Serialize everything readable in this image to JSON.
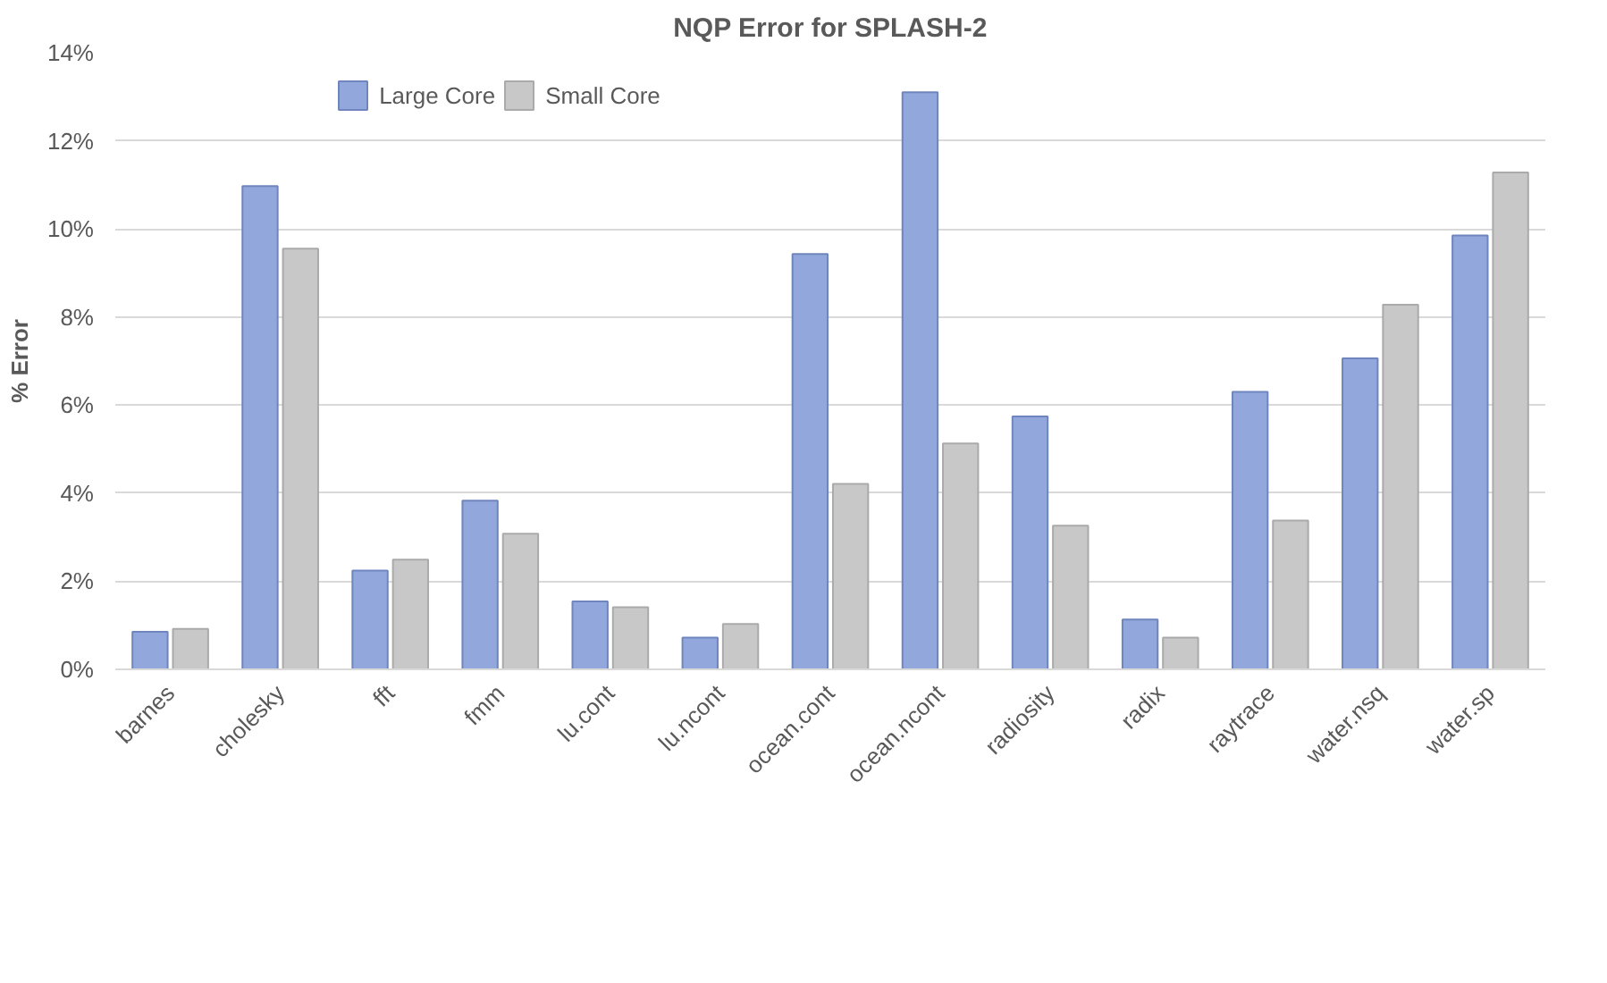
{
  "chart_data": {
    "type": "bar",
    "title": "NQP Error for SPLASH-2",
    "ylabel": "% Error",
    "categories": [
      "barnes",
      "cholesky",
      "fft",
      "fmm",
      "lu.cont",
      "lu.ncont",
      "ocean.cont",
      "ocean.ncont",
      "radiosity",
      "radix",
      "raytrace",
      "water.nsq",
      "water.sp"
    ],
    "series": [
      {
        "name": "Large Core",
        "color": "#92a8dc",
        "values": [
          0.85,
          10.97,
          2.24,
          3.83,
          1.54,
          0.72,
          9.43,
          13.1,
          5.74,
          1.13,
          6.3,
          7.06,
          9.85
        ]
      },
      {
        "name": "Small Core",
        "color": "#c8c8c8",
        "values": [
          0.92,
          9.55,
          2.49,
          3.08,
          1.41,
          1.03,
          4.21,
          5.13,
          3.26,
          0.72,
          3.38,
          8.28,
          11.28
        ]
      }
    ],
    "ylim": [
      0,
      14
    ],
    "yticks": [
      {
        "value": 0,
        "label": "0%"
      },
      {
        "value": 2,
        "label": "2%"
      },
      {
        "value": 4,
        "label": "4%"
      },
      {
        "value": 6,
        "label": "6%"
      },
      {
        "value": 8,
        "label": "8%"
      },
      {
        "value": 10,
        "label": "10%"
      },
      {
        "value": 12,
        "label": "12%"
      },
      {
        "value": 14,
        "label": "14%"
      }
    ],
    "grid": "y",
    "legend": "top"
  }
}
